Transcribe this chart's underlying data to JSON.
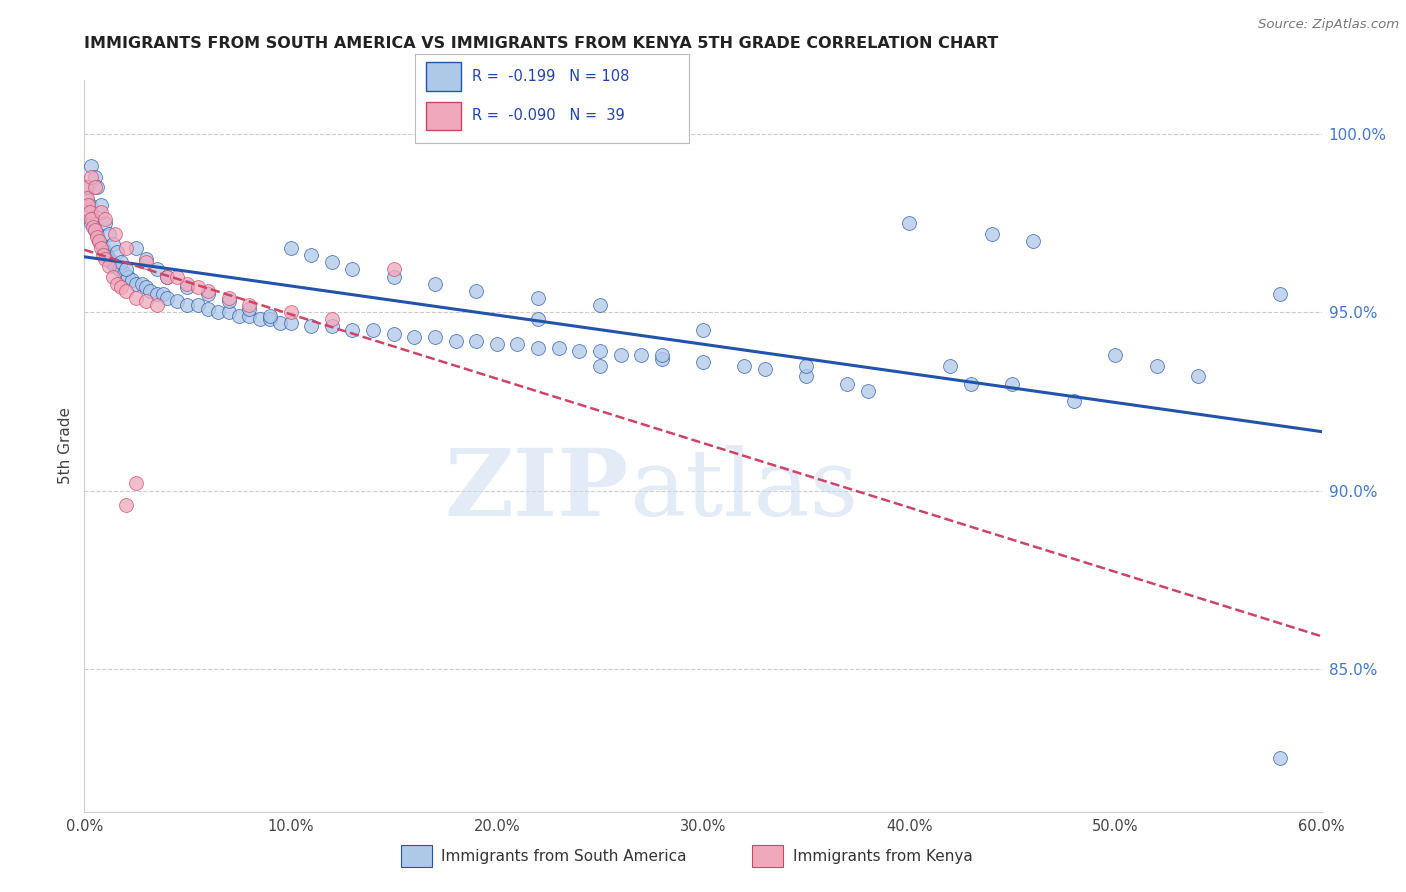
{
  "title": "IMMIGRANTS FROM SOUTH AMERICA VS IMMIGRANTS FROM KENYA 5TH GRADE CORRELATION CHART",
  "source": "Source: ZipAtlas.com",
  "ylabel": "5th Grade",
  "yticks_right": [
    100.0,
    95.0,
    90.0,
    85.0
  ],
  "xlim": [
    0.0,
    60.0
  ],
  "ylim": [
    81.0,
    101.5
  ],
  "blue_color": "#aec8e8",
  "pink_color": "#f0a8bc",
  "blue_line_color": "#2255aa",
  "pink_line_color": "#cc4466",
  "legend_blue_R": "-0.199",
  "legend_blue_N": "108",
  "legend_pink_R": "-0.090",
  "legend_pink_N": "39",
  "watermark_zip": "ZIP",
  "watermark_atlas": "atlas",
  "blue_x": [
    0.1,
    0.15,
    0.2,
    0.25,
    0.3,
    0.4,
    0.5,
    0.6,
    0.7,
    0.8,
    0.9,
    1.0,
    1.1,
    1.2,
    1.3,
    1.5,
    1.7,
    1.9,
    2.1,
    2.3,
    2.5,
    2.8,
    3.0,
    3.2,
    3.5,
    3.8,
    4.0,
    4.5,
    5.0,
    5.5,
    6.0,
    6.5,
    7.0,
    7.5,
    8.0,
    8.5,
    9.0,
    9.5,
    10.0,
    11.0,
    12.0,
    13.0,
    14.0,
    15.0,
    16.0,
    17.0,
    18.0,
    19.0,
    20.0,
    21.0,
    22.0,
    23.0,
    24.0,
    25.0,
    26.0,
    27.0,
    28.0,
    30.0,
    32.0,
    33.0,
    0.3,
    0.5,
    0.6,
    0.8,
    1.0,
    1.2,
    1.4,
    1.6,
    1.8,
    2.0,
    2.5,
    3.0,
    3.5,
    4.0,
    5.0,
    6.0,
    7.0,
    8.0,
    9.0,
    10.0,
    11.0,
    12.0,
    13.0,
    15.0,
    17.0,
    19.0,
    22.0,
    25.0,
    28.0,
    35.0,
    38.0,
    40.0,
    42.0,
    45.0,
    48.0,
    50.0,
    52.0,
    54.0,
    58.0,
    43.0,
    44.0,
    46.0,
    35.0,
    37.0,
    30.0,
    25.0,
    22.0,
    58.0
  ],
  "blue_y": [
    98.2,
    97.8,
    98.5,
    98.0,
    97.5,
    97.6,
    97.3,
    97.2,
    97.0,
    96.9,
    96.8,
    96.7,
    96.6,
    96.5,
    96.4,
    96.3,
    96.2,
    96.1,
    96.0,
    95.9,
    95.8,
    95.8,
    95.7,
    95.6,
    95.5,
    95.5,
    95.4,
    95.3,
    95.2,
    95.2,
    95.1,
    95.0,
    95.0,
    94.9,
    94.9,
    94.8,
    94.8,
    94.7,
    94.7,
    94.6,
    94.6,
    94.5,
    94.5,
    94.4,
    94.3,
    94.3,
    94.2,
    94.2,
    94.1,
    94.1,
    94.0,
    94.0,
    93.9,
    93.9,
    93.8,
    93.8,
    93.7,
    93.6,
    93.5,
    93.4,
    99.1,
    98.8,
    98.5,
    98.0,
    97.5,
    97.2,
    96.9,
    96.7,
    96.4,
    96.2,
    96.8,
    96.5,
    96.2,
    96.0,
    95.7,
    95.5,
    95.3,
    95.1,
    94.9,
    96.8,
    96.6,
    96.4,
    96.2,
    96.0,
    95.8,
    95.6,
    95.4,
    95.2,
    93.8,
    93.2,
    92.8,
    97.5,
    93.5,
    93.0,
    92.5,
    93.8,
    93.5,
    93.2,
    82.5,
    93.0,
    97.2,
    97.0,
    93.5,
    93.0,
    94.5,
    93.5,
    94.8,
    95.5
  ],
  "pink_x": [
    0.1,
    0.15,
    0.2,
    0.25,
    0.3,
    0.4,
    0.5,
    0.6,
    0.7,
    0.8,
    0.9,
    1.0,
    1.2,
    1.4,
    1.6,
    1.8,
    2.0,
    2.5,
    3.0,
    3.5,
    4.0,
    5.0,
    6.0,
    7.0,
    8.0,
    10.0,
    12.0,
    15.0,
    2.5,
    0.3,
    0.5,
    0.8,
    1.0,
    1.5,
    2.0,
    3.0,
    4.5,
    5.5,
    2.0
  ],
  "pink_y": [
    98.5,
    98.2,
    98.0,
    97.8,
    97.6,
    97.4,
    97.3,
    97.1,
    97.0,
    96.8,
    96.6,
    96.5,
    96.3,
    96.0,
    95.8,
    95.7,
    95.6,
    95.4,
    95.3,
    95.2,
    96.0,
    95.8,
    95.6,
    95.4,
    95.2,
    95.0,
    94.8,
    96.2,
    90.2,
    98.8,
    98.5,
    97.8,
    97.6,
    97.2,
    96.8,
    96.4,
    96.0,
    95.7,
    89.6
  ]
}
